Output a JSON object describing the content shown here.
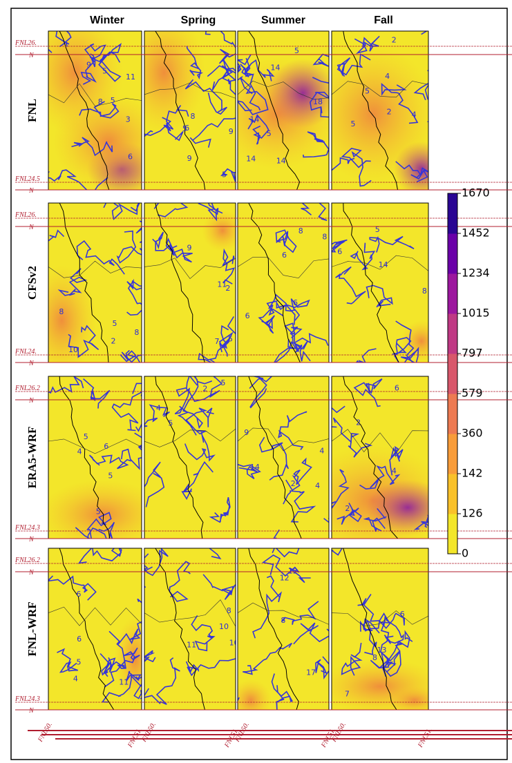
{
  "figure": {
    "columns": [
      "Winter",
      "Spring",
      "Summer",
      "Fall"
    ],
    "rows": [
      {
        "label": "FNL",
        "contour_labels": [
          [
            "8",
            "3",
            "11",
            "5",
            "9",
            "5",
            "6"
          ],
          [
            "8",
            "6",
            "5",
            "9",
            "9",
            "5"
          ],
          [
            "14",
            "14",
            "18",
            "14",
            "5",
            "5",
            "14"
          ],
          [
            "4",
            "5",
            "2",
            "4",
            "5",
            "2"
          ]
        ],
        "edge_labels": [
          "FNL26.",
          "N",
          "FNL24.5",
          "N"
        ]
      },
      {
        "label": "CFSv2",
        "contour_labels": [
          [
            "5",
            "8",
            "8",
            "10",
            "2"
          ],
          [
            "7",
            "9",
            "11",
            "2",
            "5"
          ],
          [
            "6",
            "8",
            "6",
            "8",
            "6"
          ],
          [
            "6",
            "5",
            "14",
            "8"
          ]
        ],
        "edge_labels": [
          "FNL26.",
          "N",
          "FNL24.",
          "N"
        ]
      },
      {
        "label": "ERA5-WRF",
        "contour_labels": [
          [
            "5",
            "5",
            "6",
            "4",
            "5"
          ],
          [
            "5",
            "5",
            "2",
            "4"
          ],
          [
            "9",
            "14",
            "4",
            "4",
            "2"
          ],
          [
            "6",
            "4",
            "2",
            "2",
            "4"
          ]
        ],
        "edge_labels": [
          "FNL26.2",
          "N",
          "FNL24.3",
          "N"
        ]
      },
      {
        "label": "FNL-WRF",
        "contour_labels": [
          [
            "4",
            "6",
            "5",
            "6",
            "11"
          ],
          [
            "10",
            "8",
            "10",
            "11"
          ],
          [
            "17",
            "12",
            "12",
            "8"
          ],
          [
            "8",
            "6",
            "13",
            "7"
          ]
        ],
        "edge_labels": [
          "FNL26.2",
          "N",
          "FNL24.3",
          "N"
        ]
      }
    ],
    "bottom_labels": [
      "FNL50.",
      "FNL51.",
      "FNL50.",
      "FNL51.",
      "FNL50.",
      "FNL51.",
      "FNL50.",
      "FNL51."
    ],
    "colorbar": {
      "ticks": [
        0,
        126,
        142,
        360,
        579,
        797,
        1015,
        1234,
        1452,
        1670
      ],
      "colors": [
        "#f3e62a",
        "#f9c12a",
        "#f89c3a",
        "#ed7a52",
        "#d8576b",
        "#bf3984",
        "#9c179e",
        "#6a00a8",
        "#2a0593"
      ]
    }
  }
}
